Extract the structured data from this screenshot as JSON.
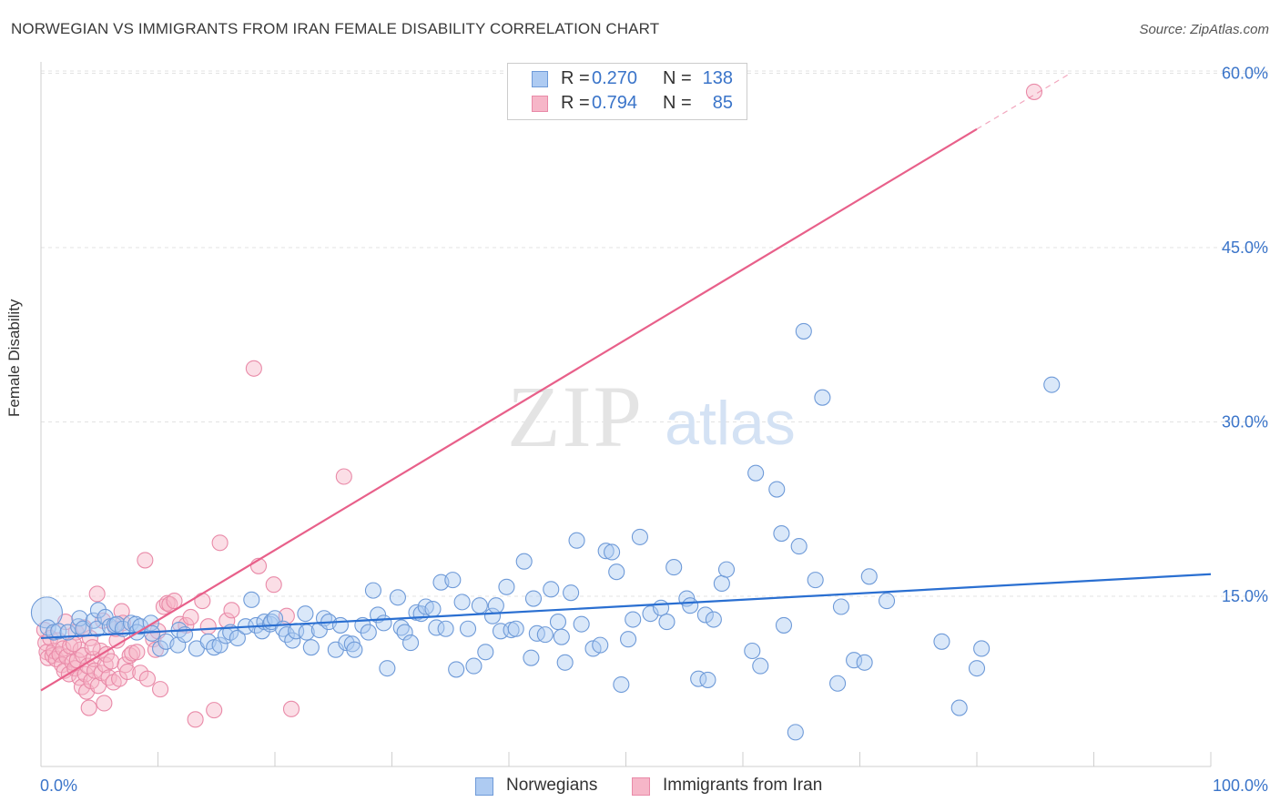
{
  "header": {
    "title": "NORWEGIAN VS IMMIGRANTS FROM IRAN FEMALE DISABILITY CORRELATION CHART",
    "source": "Source: ZipAtlas.com"
  },
  "watermark": {
    "zip": "ZIP",
    "atlas": "atlas"
  },
  "colors": {
    "blue_fill": "#aecbf2",
    "blue_stroke": "#6e9ad8",
    "blue_line": "#2a6fd1",
    "pink_fill": "#f6b6c8",
    "pink_stroke": "#e98aa8",
    "pink_line": "#e8608a",
    "tick_label": "#3a74c9",
    "grid": "#e3e3e3"
  },
  "legend_top": [
    {
      "r_label": "R =",
      "r_value": "0.270",
      "n_label": "N =",
      "n_value": "138"
    },
    {
      "r_label": "R =",
      "r_value": "0.794",
      "n_label": "N =",
      "n_value": "85"
    }
  ],
  "chart_data": {
    "type": "scatter",
    "title": "NORWEGIAN VS IMMIGRANTS FROM IRAN FEMALE DISABILITY CORRELATION CHART",
    "xlabel": "",
    "ylabel": "Female Disability",
    "xlim": [
      0,
      100
    ],
    "ylim": [
      0,
      65
    ],
    "x_tick_labels": [
      "0.0%",
      "100.0%"
    ],
    "y_ticks": [
      15,
      30,
      45,
      60
    ],
    "y_tick_labels": [
      "15.0%",
      "30.0%",
      "45.0%",
      "60.0%"
    ],
    "grid": true,
    "legend_position": "bottom",
    "series": [
      {
        "name": "Norwegians",
        "color": "#aecbf2",
        "r": 0.27,
        "n": 138,
        "trend": {
          "x": [
            0,
            100
          ],
          "y": [
            11.4,
            16.9
          ]
        },
        "points": [
          [
            0.5,
            13.6
          ],
          [
            0.6,
            12.3
          ],
          [
            1.1,
            11.9
          ],
          [
            1.5,
            12.0
          ],
          [
            2.3,
            11.9
          ],
          [
            3.2,
            12.4
          ],
          [
            3.3,
            13.1
          ],
          [
            3.6,
            12.2
          ],
          [
            4.5,
            12.9
          ],
          [
            4.8,
            12.2
          ],
          [
            4.9,
            13.8
          ],
          [
            5.5,
            13.2
          ],
          [
            5.9,
            12.4
          ],
          [
            6.3,
            12.5
          ],
          [
            6.5,
            12.6
          ],
          [
            7.0,
            12.2
          ],
          [
            7.7,
            12.7
          ],
          [
            8.1,
            12.6
          ],
          [
            8.2,
            11.9
          ],
          [
            8.5,
            12.4
          ],
          [
            9.4,
            12.7
          ],
          [
            9.5,
            11.8
          ],
          [
            10.2,
            10.5
          ],
          [
            10.7,
            11.1
          ],
          [
            11.7,
            10.8
          ],
          [
            11.8,
            12.1
          ],
          [
            12.3,
            11.7
          ],
          [
            13.3,
            10.5
          ],
          [
            14.3,
            11.1
          ],
          [
            14.8,
            10.6
          ],
          [
            15.3,
            10.8
          ],
          [
            15.8,
            11.6
          ],
          [
            16.2,
            11.9
          ],
          [
            16.8,
            11.4
          ],
          [
            17.5,
            12.4
          ],
          [
            18.0,
            14.7
          ],
          [
            18.4,
            12.5
          ],
          [
            18.9,
            12.0
          ],
          [
            19.1,
            12.8
          ],
          [
            19.6,
            12.6
          ],
          [
            19.7,
            12.8
          ],
          [
            20.0,
            13.1
          ],
          [
            20.7,
            12.2
          ],
          [
            21.0,
            11.7
          ],
          [
            21.5,
            11.2
          ],
          [
            21.8,
            12.0
          ],
          [
            22.6,
            13.5
          ],
          [
            22.7,
            11.9
          ],
          [
            23.1,
            10.6
          ],
          [
            23.8,
            12.1
          ],
          [
            24.2,
            13.1
          ],
          [
            24.6,
            12.8
          ],
          [
            25.2,
            10.4
          ],
          [
            25.6,
            12.5
          ],
          [
            26.1,
            11.0
          ],
          [
            26.6,
            10.9
          ],
          [
            26.8,
            10.4
          ],
          [
            27.5,
            12.5
          ],
          [
            28.0,
            11.9
          ],
          [
            28.4,
            15.5
          ],
          [
            28.8,
            13.4
          ],
          [
            29.3,
            12.7
          ],
          [
            29.6,
            8.8
          ],
          [
            30.5,
            14.9
          ],
          [
            30.8,
            12.3
          ],
          [
            31.1,
            11.9
          ],
          [
            31.6,
            11.0
          ],
          [
            32.1,
            13.6
          ],
          [
            32.5,
            13.5
          ],
          [
            32.9,
            14.1
          ],
          [
            33.5,
            13.9
          ],
          [
            33.8,
            12.3
          ],
          [
            34.2,
            16.2
          ],
          [
            34.6,
            12.2
          ],
          [
            35.2,
            16.4
          ],
          [
            35.5,
            8.7
          ],
          [
            36.0,
            14.5
          ],
          [
            36.5,
            12.2
          ],
          [
            37.0,
            9.0
          ],
          [
            37.5,
            14.2
          ],
          [
            38.0,
            10.2
          ],
          [
            38.6,
            13.3
          ],
          [
            38.9,
            14.2
          ],
          [
            39.3,
            12.0
          ],
          [
            39.8,
            15.8
          ],
          [
            40.2,
            12.1
          ],
          [
            40.6,
            12.2
          ],
          [
            41.3,
            18.0
          ],
          [
            41.9,
            9.7
          ],
          [
            42.1,
            14.8
          ],
          [
            42.4,
            11.8
          ],
          [
            43.1,
            11.7
          ],
          [
            43.6,
            15.6
          ],
          [
            44.2,
            12.8
          ],
          [
            44.5,
            11.5
          ],
          [
            44.8,
            9.3
          ],
          [
            45.3,
            15.3
          ],
          [
            45.8,
            19.8
          ],
          [
            46.2,
            12.6
          ],
          [
            47.2,
            10.5
          ],
          [
            47.8,
            10.8
          ],
          [
            48.3,
            18.9
          ],
          [
            48.8,
            18.8
          ],
          [
            49.2,
            17.1
          ],
          [
            49.6,
            7.4
          ],
          [
            50.2,
            11.3
          ],
          [
            50.6,
            13.0
          ],
          [
            51.2,
            20.1
          ],
          [
            52.1,
            13.5
          ],
          [
            53.0,
            14.0
          ],
          [
            53.5,
            12.8
          ],
          [
            54.1,
            17.5
          ],
          [
            55.2,
            14.8
          ],
          [
            55.5,
            14.2
          ],
          [
            56.2,
            7.9
          ],
          [
            56.8,
            13.4
          ],
          [
            57.0,
            7.8
          ],
          [
            57.5,
            13.0
          ],
          [
            58.2,
            16.1
          ],
          [
            58.6,
            17.3
          ],
          [
            60.8,
            10.3
          ],
          [
            61.1,
            25.6
          ],
          [
            61.5,
            9.0
          ],
          [
            62.9,
            24.2
          ],
          [
            63.3,
            20.4
          ],
          [
            63.5,
            12.5
          ],
          [
            64.5,
            3.3
          ],
          [
            64.8,
            19.3
          ],
          [
            65.2,
            37.8
          ],
          [
            66.2,
            16.4
          ],
          [
            66.8,
            32.1
          ],
          [
            68.1,
            7.5
          ],
          [
            68.4,
            14.1
          ],
          [
            69.5,
            9.5
          ],
          [
            70.4,
            9.3
          ],
          [
            70.8,
            16.7
          ],
          [
            72.3,
            14.6
          ],
          [
            86.4,
            33.2
          ],
          [
            78.5,
            5.4
          ],
          [
            77.0,
            11.1
          ],
          [
            80.0,
            8.8
          ],
          [
            80.4,
            10.5
          ]
        ]
      },
      {
        "name": "Immigrants from Iran",
        "color": "#f6b6c8",
        "r": 0.794,
        "n": 85,
        "trend": {
          "x": [
            0,
            80
          ],
          "y": [
            6.9,
            55.2
          ]
        },
        "trend_extension": {
          "x": [
            80,
            88
          ],
          "y": [
            55.2,
            60.0
          ]
        },
        "points": [
          [
            0.3,
            12.1
          ],
          [
            0.4,
            11.0
          ],
          [
            0.5,
            10.2
          ],
          [
            0.6,
            9.7
          ],
          [
            0.8,
            11.4
          ],
          [
            1.0,
            9.9
          ],
          [
            1.1,
            10.3
          ],
          [
            1.3,
            9.6
          ],
          [
            1.5,
            11.2
          ],
          [
            1.6,
            10.0
          ],
          [
            1.8,
            9.1
          ],
          [
            1.9,
            10.5
          ],
          [
            2.0,
            8.6
          ],
          [
            2.2,
            9.8
          ],
          [
            2.4,
            8.3
          ],
          [
            2.5,
            10.7
          ],
          [
            2.7,
            9.3
          ],
          [
            2.9,
            8.8
          ],
          [
            3.0,
            11.9
          ],
          [
            3.1,
            9.5
          ],
          [
            3.3,
            8.0
          ],
          [
            3.4,
            10.4
          ],
          [
            3.5,
            7.2
          ],
          [
            3.6,
            9.9
          ],
          [
            3.8,
            8.3
          ],
          [
            3.9,
            6.8
          ],
          [
            4.0,
            9.0
          ],
          [
            4.1,
            5.4
          ],
          [
            4.2,
            11.4
          ],
          [
            4.3,
            7.7
          ],
          [
            4.5,
            9.6
          ],
          [
            4.6,
            8.6
          ],
          [
            4.8,
            15.2
          ],
          [
            4.9,
            7.3
          ],
          [
            5.1,
            10.3
          ],
          [
            5.2,
            8.4
          ],
          [
            5.3,
            12.9
          ],
          [
            5.4,
            5.8
          ],
          [
            5.5,
            9.1
          ],
          [
            5.6,
            10.0
          ],
          [
            5.8,
            8.0
          ],
          [
            6.0,
            9.4
          ],
          [
            6.2,
            7.6
          ],
          [
            6.5,
            11.2
          ],
          [
            6.7,
            7.9
          ],
          [
            6.9,
            13.7
          ],
          [
            7.2,
            9.1
          ],
          [
            7.4,
            8.5
          ],
          [
            7.6,
            9.9
          ],
          [
            7.8,
            10.1
          ],
          [
            8.2,
            10.2
          ],
          [
            8.5,
            8.4
          ],
          [
            8.9,
            18.1
          ],
          [
            9.1,
            7.9
          ],
          [
            9.6,
            11.3
          ],
          [
            10.0,
            12.0
          ],
          [
            10.2,
            7.0
          ],
          [
            10.5,
            14.1
          ],
          [
            10.8,
            14.4
          ],
          [
            11.0,
            14.3
          ],
          [
            11.4,
            14.6
          ],
          [
            11.9,
            12.6
          ],
          [
            12.4,
            12.5
          ],
          [
            12.8,
            13.2
          ],
          [
            13.2,
            4.4
          ],
          [
            13.8,
            14.6
          ],
          [
            14.3,
            12.4
          ],
          [
            14.8,
            5.2
          ],
          [
            15.3,
            19.6
          ],
          [
            15.9,
            12.9
          ],
          [
            16.3,
            13.8
          ],
          [
            18.2,
            34.6
          ],
          [
            18.6,
            17.6
          ],
          [
            19.9,
            16.0
          ],
          [
            21.0,
            13.3
          ],
          [
            21.4,
            5.3
          ],
          [
            25.9,
            25.3
          ],
          [
            84.9,
            58.4
          ],
          [
            2.1,
            12.8
          ],
          [
            2.8,
            10.9
          ],
          [
            3.7,
            12.3
          ],
          [
            4.4,
            10.6
          ],
          [
            6.4,
            12.2
          ],
          [
            7.0,
            12.7
          ],
          [
            9.8,
            10.4
          ]
        ]
      }
    ]
  }
}
